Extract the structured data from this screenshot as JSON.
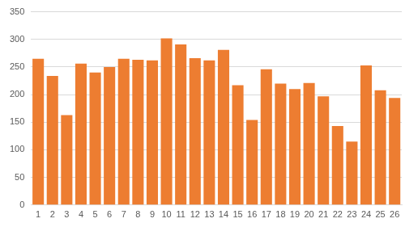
{
  "chart_data": {
    "type": "bar",
    "categories": [
      "1",
      "2",
      "3",
      "4",
      "5",
      "6",
      "7",
      "8",
      "9",
      "10",
      "11",
      "12",
      "13",
      "14",
      "15",
      "16",
      "17",
      "18",
      "19",
      "20",
      "21",
      "22",
      "23",
      "24",
      "25",
      "26"
    ],
    "values": [
      265,
      234,
      163,
      256,
      240,
      250,
      265,
      263,
      262,
      302,
      291,
      266,
      262,
      281,
      217,
      154,
      246,
      220,
      210,
      221,
      197,
      143,
      115,
      253,
      208,
      194
    ],
    "color": "#ed7d31",
    "ylim": [
      0,
      350
    ],
    "yticks": [
      0,
      50,
      100,
      150,
      200,
      250,
      300,
      350
    ],
    "grid": true
  }
}
